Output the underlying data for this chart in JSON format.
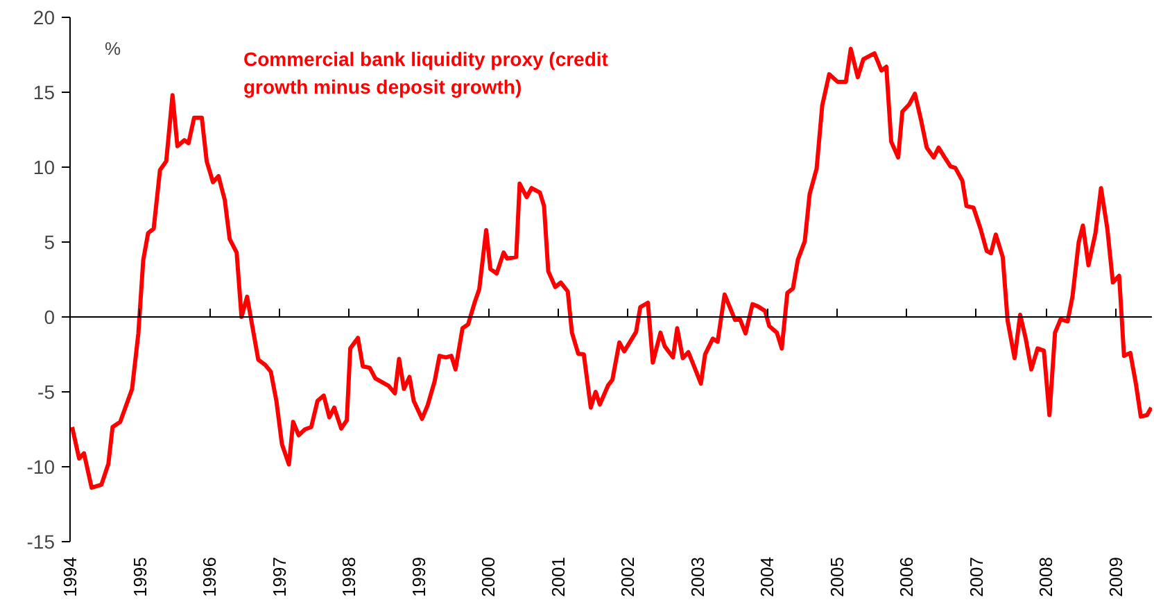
{
  "chart_data": {
    "type": "line",
    "ylabel": "%",
    "xlim": [
      1994,
      2009.52
    ],
    "ylim": [
      -15,
      20
    ],
    "xticks": [
      1994,
      1995,
      1996,
      1997,
      1998,
      1999,
      2000,
      2001,
      2002,
      2003,
      2004,
      2005,
      2006,
      2007,
      2008,
      2009
    ],
    "yticks": [
      -15,
      -10,
      -5,
      0,
      5,
      10,
      15,
      20
    ],
    "legend": "top left",
    "marker": "none",
    "line_style": "solid",
    "series": [
      {
        "name": "Commercial bank liquidity proxy (credit growth minus deposit growth)",
        "color": "#ff0000",
        "x": [
          1994.03,
          1994.13,
          1994.2,
          1994.31,
          1994.45,
          1994.55,
          1994.61,
          1994.72,
          1994.89,
          1994.98,
          1995.05,
          1995.12,
          1995.2,
          1995.29,
          1995.38,
          1995.47,
          1995.54,
          1995.64,
          1995.7,
          1995.78,
          1995.89,
          1995.96,
          1996.05,
          1996.13,
          1996.22,
          1996.29,
          1996.39,
          1996.46,
          1996.54,
          1996.7,
          1996.8,
          1996.88,
          1996.96,
          1997.04,
          1997.14,
          1997.2,
          1997.28,
          1997.37,
          1997.46,
          1997.55,
          1997.64,
          1997.72,
          1997.79,
          1997.89,
          1997.97,
          1998.02,
          1998.13,
          1998.2,
          1998.3,
          1998.38,
          1998.57,
          1998.66,
          1998.72,
          1998.79,
          1998.87,
          1998.93,
          1999.05,
          1999.13,
          1999.23,
          1999.3,
          1999.39,
          1999.47,
          1999.53,
          1999.63,
          1999.71,
          1999.8,
          1999.87,
          1999.97,
          2000.03,
          2000.12,
          2000.22,
          2000.27,
          2000.4,
          2000.45,
          2000.55,
          2000.62,
          2000.74,
          2000.8,
          2000.86,
          2000.96,
          2001.04,
          2001.14,
          2001.2,
          2001.29,
          2001.37,
          2001.47,
          2001.54,
          2001.6,
          2001.72,
          2001.78,
          2001.88,
          2001.95,
          2002.12,
          2002.18,
          2002.29,
          2002.36,
          2002.47,
          2002.53,
          2002.65,
          2002.71,
          2002.79,
          2002.87,
          2002.94,
          2003.05,
          2003.11,
          2003.22,
          2003.29,
          2003.39,
          2003.47,
          2003.54,
          2003.61,
          2003.69,
          2003.79,
          2003.87,
          2003.97,
          2004.03,
          2004.14,
          2004.21,
          2004.29,
          2004.37,
          2004.44,
          2004.54,
          2004.61,
          2004.71,
          2004.79,
          2004.89,
          2005.01,
          2005.13,
          2005.2,
          2005.3,
          2005.38,
          2005.54,
          2005.64,
          2005.71,
          2005.78,
          2005.88,
          2005.94,
          2006.04,
          2006.12,
          2006.21,
          2006.29,
          2006.39,
          2006.46,
          2006.54,
          2006.63,
          2006.7,
          2006.8,
          2006.86,
          2006.96,
          2007.06,
          2007.15,
          2007.21,
          2007.28,
          2007.38,
          2007.45,
          2007.55,
          2007.63,
          2007.71,
          2007.79,
          2007.88,
          2007.97,
          2008.05,
          2008.13,
          2008.21,
          2008.31,
          2008.38,
          2008.47,
          2008.53,
          2008.61,
          2008.71,
          2008.79,
          2008.88,
          2008.96,
          2009.05,
          2009.12,
          2009.21,
          2009.29,
          2009.36,
          2009.45,
          2009.51
        ],
        "values": [
          -7.35,
          -9.45,
          -9.1,
          -11.4,
          -11.2,
          -9.8,
          -7.35,
          -7.0,
          -4.8,
          -1.1,
          3.8,
          5.6,
          5.9,
          9.8,
          10.4,
          14.8,
          11.4,
          11.8,
          11.6,
          13.3,
          13.3,
          10.4,
          9.0,
          9.4,
          7.8,
          5.2,
          4.3,
          0,
          1.35,
          -2.85,
          -3.2,
          -3.65,
          -5.6,
          -8.5,
          -9.85,
          -7.0,
          -7.9,
          -7.5,
          -7.35,
          -5.6,
          -5.25,
          -6.7,
          -6.05,
          -7.45,
          -6.9,
          -2.1,
          -1.4,
          -3.3,
          -3.4,
          -4.1,
          -4.6,
          -5.1,
          -2.8,
          -4.8,
          -4.0,
          -5.6,
          -6.8,
          -5.9,
          -4.3,
          -2.6,
          -2.7,
          -2.6,
          -3.5,
          -0.75,
          -0.5,
          0.9,
          1.85,
          5.8,
          3.2,
          2.9,
          4.3,
          3.9,
          4.0,
          8.9,
          8.0,
          8.6,
          8.3,
          7.4,
          3.05,
          2.0,
          2.3,
          1.7,
          -1.05,
          -2.45,
          -2.5,
          -6.05,
          -5.0,
          -5.85,
          -4.55,
          -4.2,
          -1.7,
          -2.3,
          -1.0,
          0.65,
          0.95,
          -3.05,
          -1.05,
          -1.95,
          -2.7,
          -0.75,
          -2.75,
          -2.35,
          -3.15,
          -4.45,
          -2.5,
          -1.45,
          -1.65,
          1.5,
          0.6,
          -0.2,
          -0.15,
          -1.1,
          0.85,
          0.7,
          0.4,
          -0.6,
          -1.05,
          -2.1,
          1.6,
          1.9,
          3.8,
          5.05,
          8.2,
          9.9,
          14.1,
          16.2,
          15.7,
          15.7,
          17.9,
          16.0,
          17.2,
          17.6,
          16.45,
          16.7,
          11.7,
          10.65,
          13.7,
          14.2,
          14.9,
          13.1,
          11.3,
          10.65,
          11.3,
          10.7,
          10.05,
          9.95,
          9.1,
          7.4,
          7.3,
          5.9,
          4.4,
          4.25,
          5.5,
          4.0,
          -0.25,
          -2.75,
          0.15,
          -1.45,
          -3.5,
          -2.1,
          -2.25,
          -6.55,
          -1.05,
          -0.15,
          -0.3,
          1.35,
          5.0,
          6.1,
          3.45,
          5.6,
          8.6,
          5.9,
          2.3,
          2.75,
          -2.6,
          -2.4,
          -4.45,
          -6.65,
          -6.55,
          -6.05
        ]
      }
    ]
  }
}
